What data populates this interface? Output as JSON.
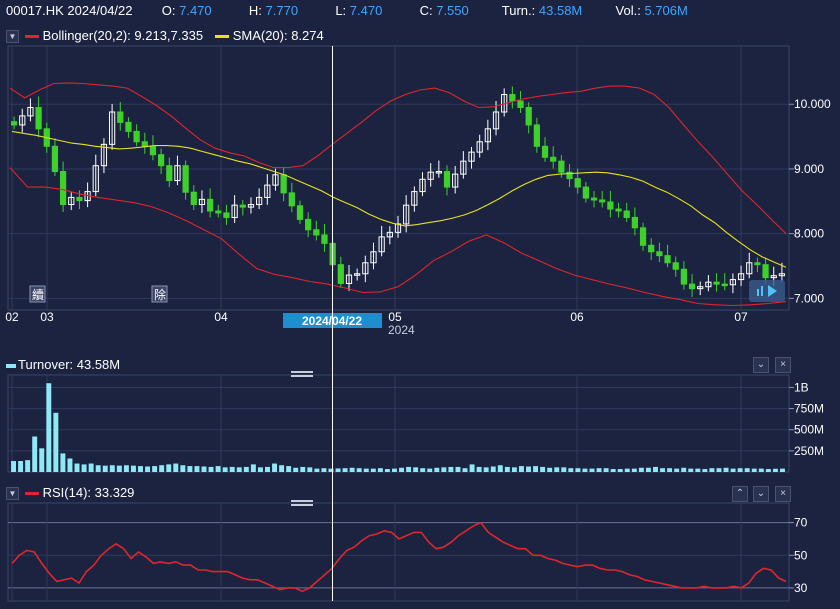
{
  "header": {
    "symbol_date": "00017.HK 2024/04/22",
    "open_label": "O:",
    "open": "7.470",
    "high_label": "H:",
    "high": "7.770",
    "low_label": "L:",
    "low": "7.470",
    "close_label": "C:",
    "close": "7.550",
    "turnover_label": "Turn.:",
    "turnover": "43.58M",
    "volume_label": "Vol.:",
    "volume": "5.706M"
  },
  "main_legend": {
    "bollinger": "Bollinger(20,2): 9.213,7.335",
    "sma": "SMA(20): 8.274"
  },
  "turnover_legend": "Turnover: 43.58M",
  "rsi_legend": "RSI(14): 33.329",
  "crosshair_date": "2024/04/22",
  "markers": [
    "續",
    "除"
  ],
  "colors": {
    "background": "#1b2340",
    "up": "#ffffff",
    "down": "#3fd12b",
    "bollinger": "#e0262b",
    "sma": "#e8e21a",
    "turnover": "#8fe8f5",
    "rsi": "#e0262b",
    "accent": "#3fa7ff"
  },
  "chart_data": [
    {
      "type": "candlestick",
      "title": "00017.HK",
      "x_ticks": [
        "02",
        "03",
        "04",
        "05",
        "06",
        "07"
      ],
      "x_year_label": "2024",
      "y_ticks": [
        "10.000",
        "9.000",
        "8.000",
        "7.000"
      ],
      "ylim": [
        6.82,
        10.9
      ],
      "close": [
        9.68,
        9.82,
        9.95,
        9.62,
        9.35,
        8.96,
        8.45,
        8.56,
        8.51,
        8.65,
        9.05,
        9.38,
        9.88,
        9.72,
        9.58,
        9.42,
        9.35,
        9.22,
        9.05,
        8.82,
        9.05,
        8.64,
        8.45,
        8.53,
        8.35,
        8.32,
        8.25,
        8.44,
        8.41,
        8.45,
        8.56,
        8.75,
        8.91,
        8.63,
        8.43,
        8.22,
        8.06,
        7.98,
        7.85,
        7.52,
        7.23,
        7.36,
        7.38,
        7.55,
        7.72,
        7.95,
        8.02,
        8.15,
        8.44,
        8.65,
        8.84,
        8.95,
        8.96,
        8.72,
        8.92,
        9.12,
        9.26,
        9.42,
        9.62,
        9.88,
        10.15,
        10.05,
        9.95,
        9.68,
        9.35,
        9.18,
        9.12,
        8.95,
        8.85,
        8.72,
        8.55,
        8.52,
        8.49,
        8.38,
        8.35,
        8.25,
        8.09,
        7.82,
        7.72,
        7.66,
        7.55,
        7.45,
        7.22,
        7.15,
        7.18,
        7.25,
        7.22,
        7.21,
        7.29,
        7.38,
        7.55,
        7.52,
        7.32,
        7.35,
        7.38
      ],
      "sma20": [
        9.58,
        9.55,
        9.52,
        9.48,
        9.44,
        9.4,
        9.38,
        9.35,
        9.33,
        9.31,
        9.32,
        9.34,
        9.36,
        9.36,
        9.35,
        9.32,
        9.27,
        9.22,
        9.17,
        9.12,
        9.08,
        9.02,
        8.96,
        8.9,
        8.82,
        8.74,
        8.66,
        8.56,
        8.48,
        8.4,
        8.3,
        8.22,
        8.16,
        8.12,
        8.14,
        8.17,
        8.2,
        8.24,
        8.29,
        8.36,
        8.45,
        8.55,
        8.66,
        8.76,
        8.84,
        8.9,
        8.92,
        8.93,
        8.94,
        8.95,
        8.94,
        8.91,
        8.87,
        8.81,
        8.72,
        8.64,
        8.54,
        8.43,
        8.29,
        8.17,
        8.02,
        7.88,
        7.75,
        7.64,
        7.56,
        7.48
      ],
      "sma_x_start": 30,
      "boll_upper": [
        10.25,
        10.1,
        10.22,
        10.32,
        10.33,
        10.32,
        10.3,
        10.28,
        10.25,
        10.12,
        9.98,
        9.82,
        9.63,
        9.45,
        9.32,
        9.25,
        9.2,
        9.1,
        9.02,
        9.02,
        9.05,
        9.2,
        9.38,
        9.55,
        9.72,
        9.9,
        10.05,
        10.15,
        10.22,
        10.25,
        10.18,
        10.05,
        9.95,
        9.96,
        10.02,
        10.08,
        10.12,
        10.15,
        10.18,
        10.2,
        10.25,
        10.28,
        10.28,
        10.25,
        10.15,
        9.95,
        9.68,
        9.42,
        9.18,
        8.92,
        8.66,
        8.45,
        8.22,
        8.0
      ],
      "boll_lower": [
        9.02,
        8.72,
        8.72,
        8.68,
        8.61,
        8.56,
        8.52,
        8.48,
        8.42,
        8.32,
        8.2,
        8.06,
        7.92,
        7.68,
        7.46,
        7.37,
        7.32,
        7.26,
        7.22,
        7.16,
        7.09,
        7.1,
        7.18,
        7.36,
        7.58,
        7.72,
        7.88,
        7.98,
        7.86,
        7.7,
        7.58,
        7.46,
        7.36,
        7.29,
        7.22,
        7.16,
        7.09,
        7.03,
        6.98,
        6.92,
        6.9,
        6.89,
        6.9,
        6.92,
        6.95
      ],
      "highlight_index": 25
    },
    {
      "type": "bar",
      "title": "Turnover",
      "y_ticks": [
        "1B",
        "750M",
        "500M",
        "250M"
      ],
      "ylim": [
        0,
        1100
      ],
      "values": [
        130,
        130,
        140,
        420,
        280,
        1050,
        700,
        220,
        160,
        100,
        90,
        100,
        80,
        75,
        80,
        75,
        80,
        75,
        70,
        65,
        70,
        80,
        90,
        100,
        80,
        70,
        70,
        65,
        60,
        70,
        55,
        60,
        55,
        60,
        90,
        55,
        60,
        100,
        80,
        70,
        50,
        60,
        55,
        40,
        45,
        40,
        42,
        45,
        50,
        45,
        40,
        40,
        45,
        35,
        40,
        50,
        60,
        55,
        45,
        40,
        50,
        55,
        60,
        60,
        45,
        90,
        60,
        55,
        65,
        80,
        60,
        55,
        70,
        65,
        70,
        60,
        50,
        55,
        55,
        45,
        45,
        40,
        40,
        45,
        45,
        35,
        35,
        40,
        40,
        50,
        50,
        60,
        45,
        45,
        40,
        50,
        40,
        40,
        35,
        45,
        45,
        50,
        40,
        45,
        45,
        40,
        40,
        35,
        38,
        40
      ]
    },
    {
      "type": "line",
      "title": "RSI(14)",
      "y_ticks": [
        "70",
        "50",
        "30"
      ],
      "ylim": [
        22,
        82
      ],
      "values": [
        45,
        50,
        53,
        52,
        45,
        39,
        34,
        35,
        36,
        33,
        40,
        44,
        50,
        54,
        57,
        54,
        48,
        52,
        49,
        45,
        46,
        45,
        46,
        44,
        44,
        41,
        41,
        40,
        40,
        40,
        38,
        36,
        35,
        35,
        33,
        31,
        29,
        30,
        30,
        28,
        30,
        34,
        38,
        42,
        48,
        53,
        55,
        59,
        62,
        63,
        65,
        64,
        60,
        62,
        64,
        64,
        58,
        54,
        55,
        58,
        62,
        65,
        68,
        70,
        64,
        61,
        58,
        56,
        54,
        54,
        50,
        50,
        48,
        47,
        45,
        44,
        43,
        44,
        44,
        42,
        41,
        41,
        40,
        38,
        37,
        35,
        34,
        33,
        32,
        31,
        30,
        30,
        30,
        31,
        30,
        30,
        30,
        31,
        30,
        33,
        39,
        42,
        41,
        36,
        34
      ]
    }
  ]
}
